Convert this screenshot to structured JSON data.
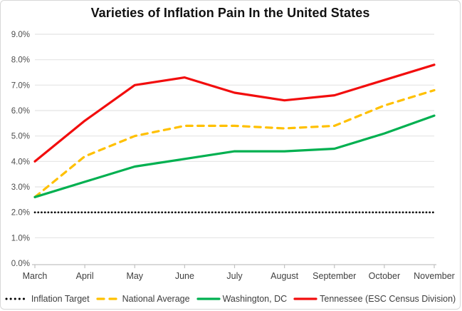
{
  "chart_data": {
    "type": "line",
    "title": "Varieties of Inflation Pain In the United States",
    "categories": [
      "March",
      "April",
      "May",
      "June",
      "July",
      "August",
      "September",
      "October",
      "November"
    ],
    "series": [
      {
        "name": "Inflation Target",
        "values": [
          2.0,
          2.0,
          2.0,
          2.0,
          2.0,
          2.0,
          2.0,
          2.0,
          2.0
        ],
        "color": "#000000",
        "style": "dotted"
      },
      {
        "name": "National Average",
        "values": [
          2.6,
          4.2,
          5.0,
          5.4,
          5.4,
          5.3,
          5.4,
          6.2,
          6.8
        ],
        "color": "#FFC000",
        "style": "dashed"
      },
      {
        "name": "Washington, DC",
        "values": [
          2.6,
          3.2,
          3.8,
          4.1,
          4.4,
          4.4,
          4.5,
          5.1,
          5.8
        ],
        "color": "#00B050",
        "style": "solid"
      },
      {
        "name": "Tennessee (ESC Census Division)",
        "values": [
          4.0,
          5.6,
          7.0,
          7.3,
          6.7,
          6.4,
          6.6,
          7.2,
          7.8
        ],
        "color": "#F20D0D",
        "style": "solid"
      }
    ],
    "ylim": [
      0,
      9
    ],
    "ytick_step": 1,
    "ytick_suffix": "%",
    "xlabel": "",
    "ylabel": "",
    "grid": true,
    "legend_position": "bottom",
    "colors": {
      "gridline": "#e4e4e4",
      "axis_line": "#c2c2c2",
      "tick_label": "#4d4d4d"
    }
  }
}
